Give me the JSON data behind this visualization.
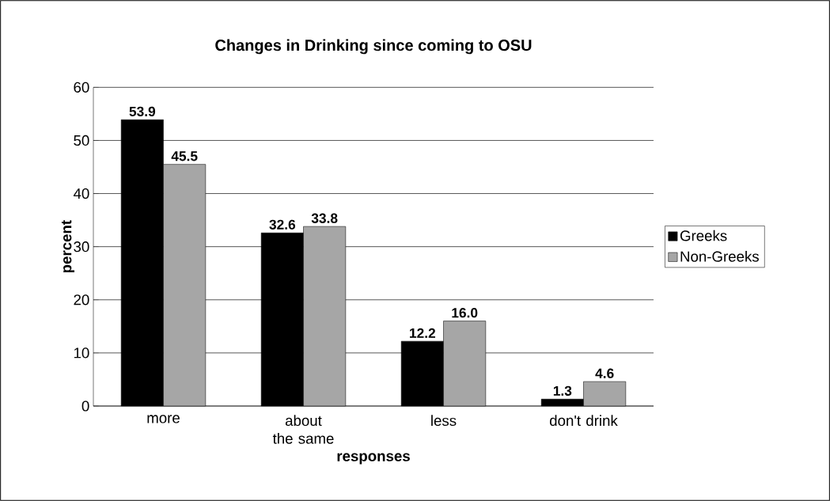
{
  "chart_data": {
    "type": "bar",
    "title": "Changes in Drinking since coming to OSU",
    "xlabel": "responses",
    "ylabel": "percent",
    "categories": [
      "more",
      "about the same",
      "less",
      "don't drink"
    ],
    "series": [
      {
        "name": "Greeks",
        "color": "#000000",
        "values": [
          53.9,
          32.6,
          12.2,
          1.3
        ],
        "value_labels": [
          "53.9",
          "32.6",
          "12.2",
          "1.3"
        ]
      },
      {
        "name": "Non-Greeks",
        "color": "#a6a6a6",
        "values": [
          45.5,
          33.8,
          16.0,
          4.6
        ],
        "value_labels": [
          "45.5",
          "33.8",
          "16.0",
          "4.6"
        ]
      }
    ],
    "ylim": [
      0,
      60
    ],
    "yticks": [
      0,
      10,
      20,
      30,
      40,
      50,
      60
    ],
    "grid": "y",
    "legend": "right"
  }
}
